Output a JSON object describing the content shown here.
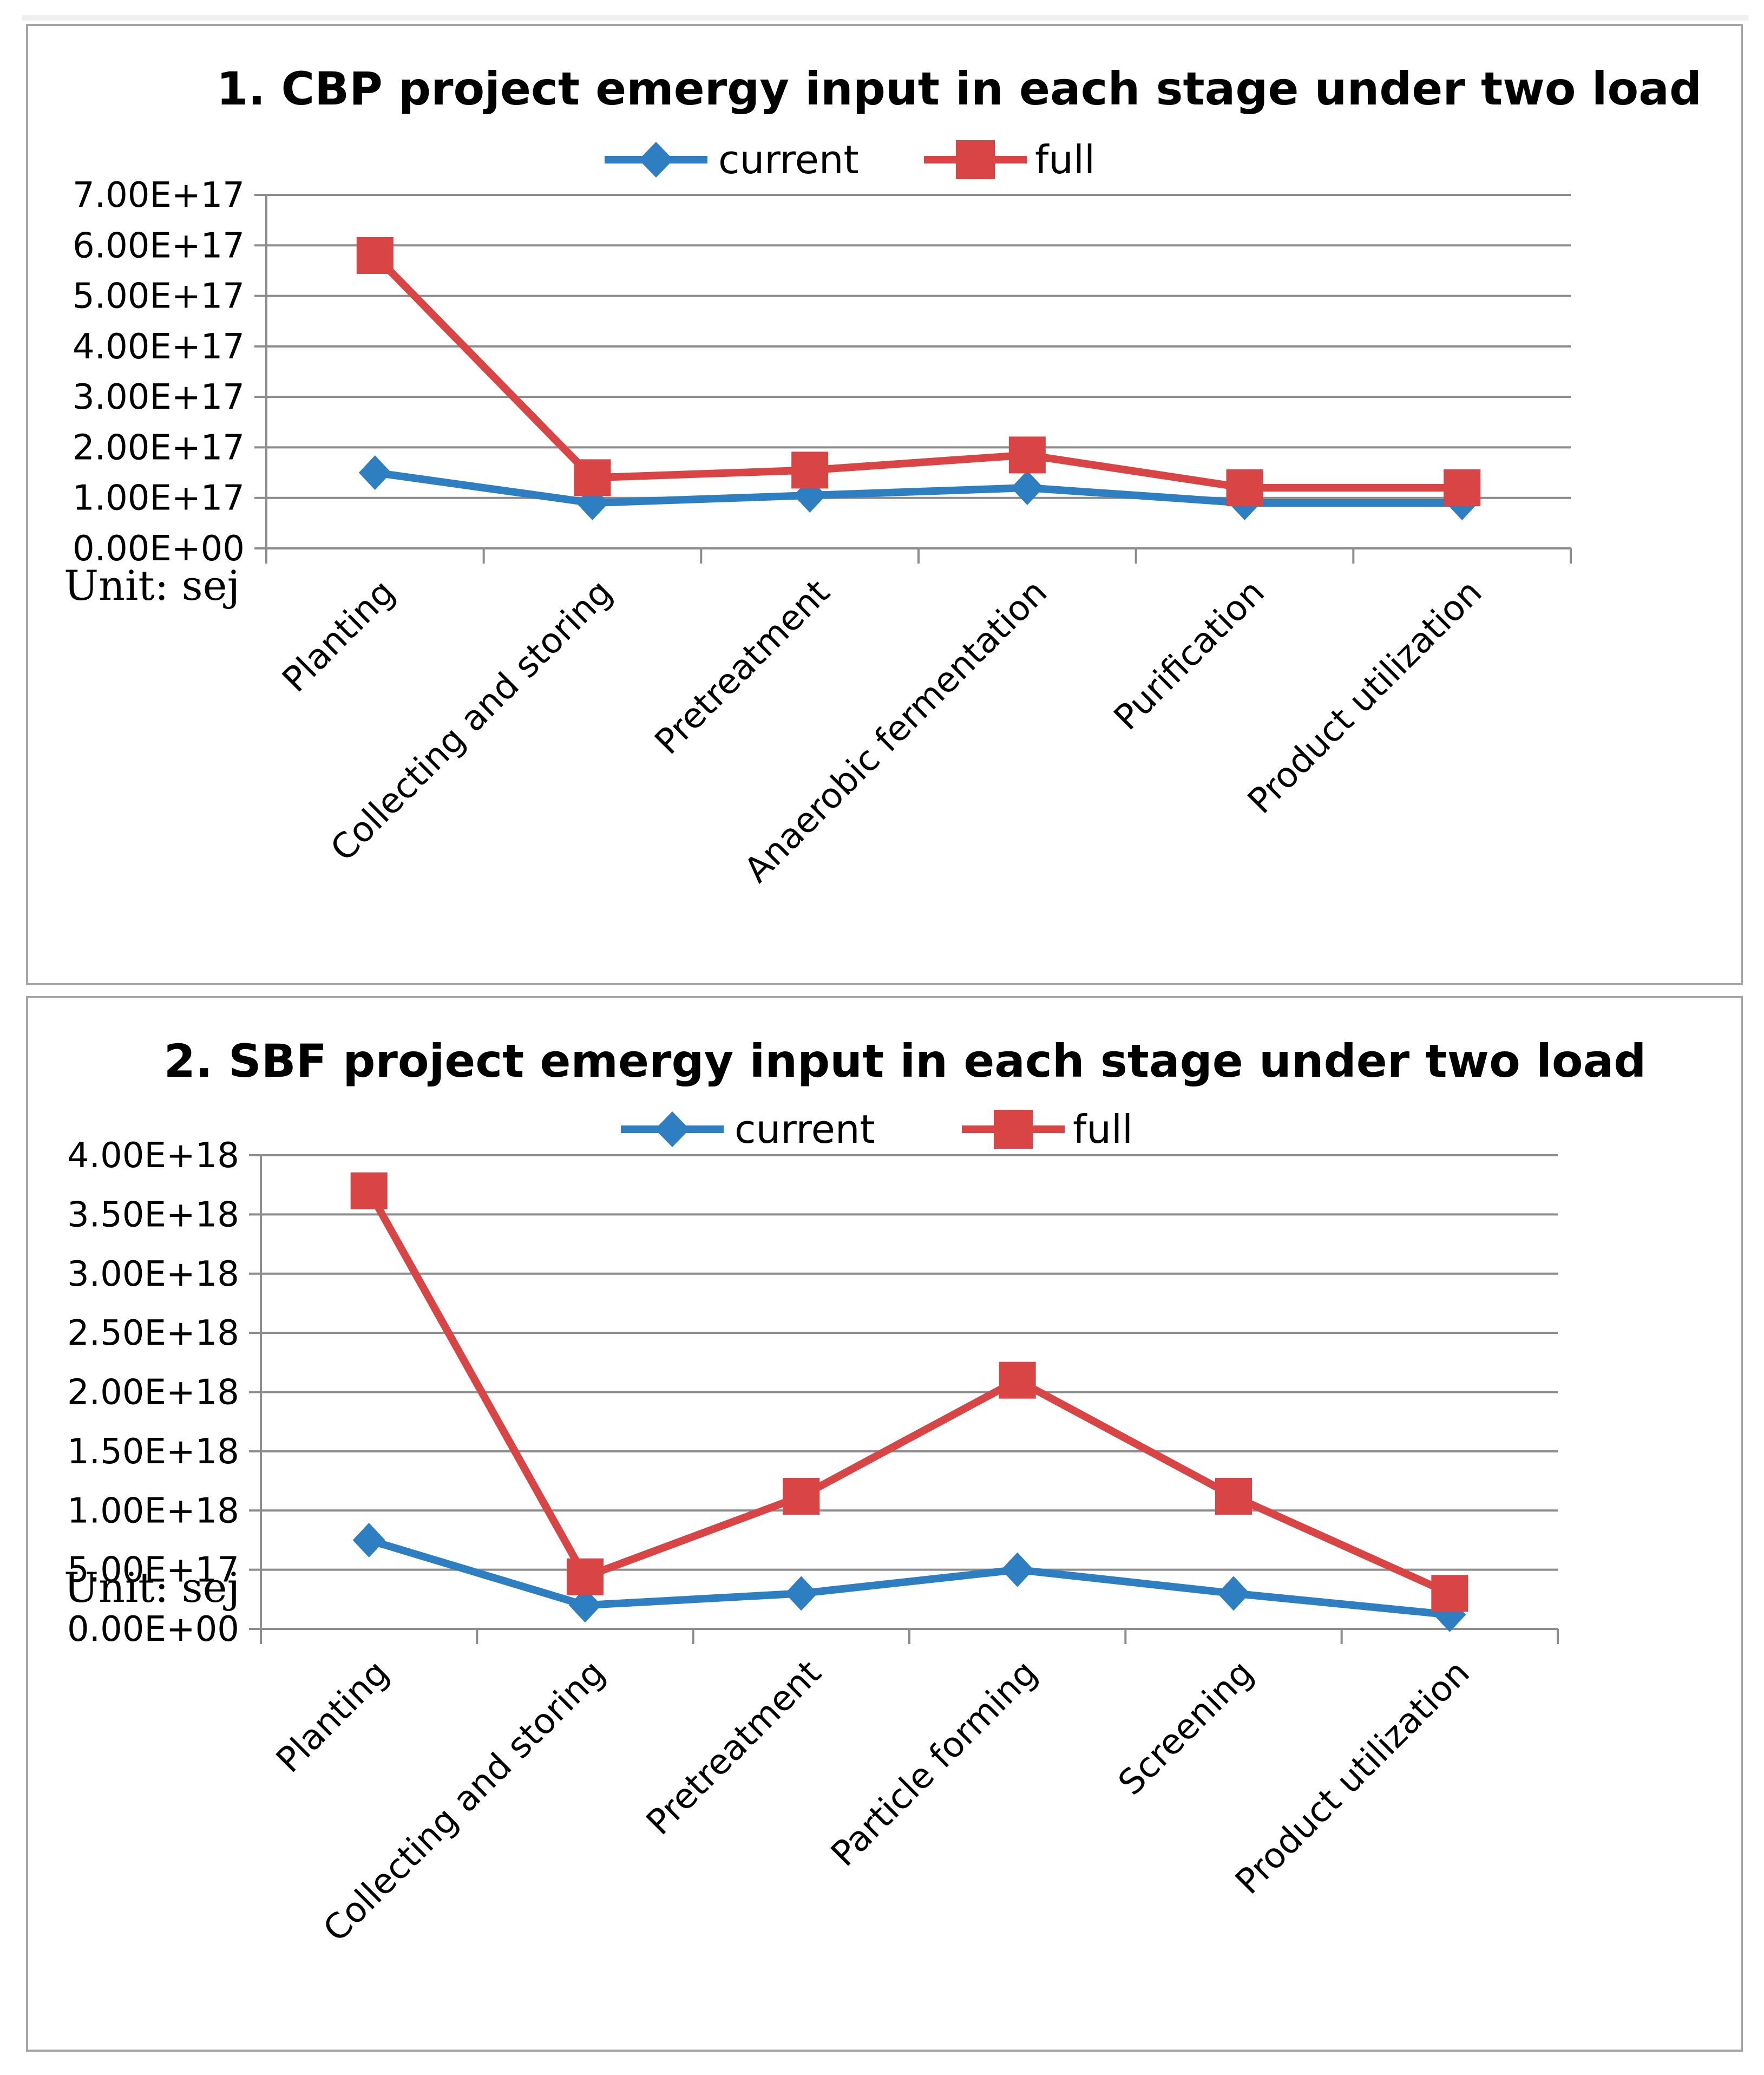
{
  "chart_data": [
    {
      "type": "line",
      "title": "1. CBP project emergy input in each stage under two load",
      "unit_label": "Unit: sej",
      "categories": [
        "Planting",
        "Collecting and storing",
        "Pretreatment",
        "Anaerobic fermentation",
        "Purification",
        "Product utilization"
      ],
      "ylim": [
        0,
        7e+17
      ],
      "y_ticks": [
        "0.00E+00",
        "1.00E+17",
        "2.00E+17",
        "3.00E+17",
        "4.00E+17",
        "5.00E+17",
        "6.00E+17",
        "7.00E+17"
      ],
      "series": [
        {
          "name": "current",
          "color": "#2e7fc1",
          "marker": "diamond",
          "values": [
            1.5e+17,
            9e+16,
            1.05e+17,
            1.2e+17,
            9e+16,
            9e+16
          ]
        },
        {
          "name": "full",
          "color": "#d94444",
          "marker": "square",
          "values": [
            5.8e+17,
            1.4e+17,
            1.55e+17,
            1.85e+17,
            1.2e+17,
            1.2e+17
          ]
        }
      ]
    },
    {
      "type": "line",
      "title": "2. SBF project emergy input in each stage under two load",
      "unit_label": "Unit: sej",
      "categories": [
        "Planting",
        "Collecting and storing",
        "Pretreatment",
        "Particle forming",
        "Screening",
        "Product utilization"
      ],
      "ylim": [
        0,
        4e+18
      ],
      "y_ticks": [
        "0.00E+00",
        "5.00E+17",
        "1.00E+18",
        "1.50E+18",
        "2.00E+18",
        "2.50E+18",
        "3.00E+18",
        "3.50E+18",
        "4.00E+18"
      ],
      "series": [
        {
          "name": "current",
          "color": "#2e7fc1",
          "marker": "diamond",
          "values": [
            7.5e+17,
            2e+17,
            3e+17,
            5e+17,
            3e+17,
            1.2e+17
          ]
        },
        {
          "name": "full",
          "color": "#d94444",
          "marker": "square",
          "values": [
            3.7e+18,
            4.4e+17,
            1.12e+18,
            2.1e+18,
            1.12e+18,
            3e+17
          ]
        }
      ]
    }
  ]
}
